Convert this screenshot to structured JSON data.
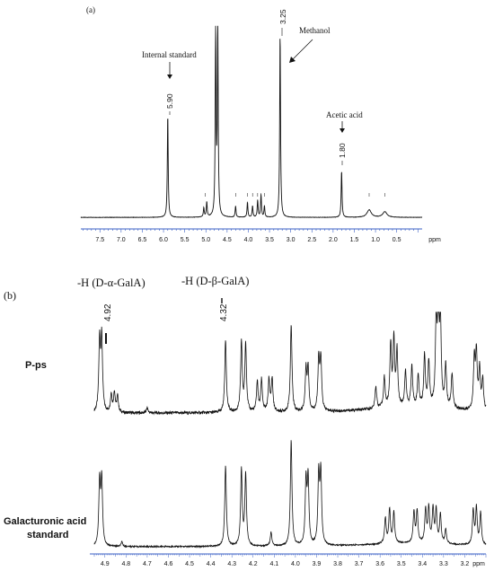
{
  "chart_data": [
    {
      "type": "line",
      "panel": "(a)",
      "xunit": "ppm",
      "xlim": [
        7.95,
        -0.1
      ],
      "xticks": [
        "7.5",
        "7.0",
        "6.5",
        "6.0",
        "5.5",
        "5.0",
        "4.5",
        "4.0",
        "3.5",
        "3.0",
        "2.5",
        "2.0",
        "1.5",
        "1.0",
        "0.5"
      ],
      "peaks": [
        {
          "x": 5.9,
          "y": 0.55
        },
        {
          "x": 5.05,
          "y": 0.05
        },
        {
          "x": 4.98,
          "y": 0.08
        },
        {
          "x": 4.77,
          "y": 1.0
        },
        {
          "x": 4.72,
          "y": 1.0
        },
        {
          "x": 4.3,
          "y": 0.06
        },
        {
          "x": 4.02,
          "y": 0.08
        },
        {
          "x": 3.9,
          "y": 0.06
        },
        {
          "x": 3.78,
          "y": 0.09
        },
        {
          "x": 3.7,
          "y": 0.12
        },
        {
          "x": 3.62,
          "y": 0.06
        },
        {
          "x": 3.25,
          "y": 0.98
        },
        {
          "x": 1.8,
          "y": 0.25
        },
        {
          "x": 1.15,
          "y": 0.04
        },
        {
          "x": 0.78,
          "y": 0.03
        }
      ],
      "peak_labels": [
        {
          "value": "5.90",
          "note": "Internal standard"
        },
        {
          "value": "3.25",
          "note": "Methanol"
        },
        {
          "value": "1.80",
          "note": "Acetic acid"
        }
      ]
    },
    {
      "type": "line",
      "panel": "(b)",
      "xunit": "ppm",
      "xlim": [
        4.95,
        3.1
      ],
      "xticks": [
        "4.9",
        "4.8",
        "4.7",
        "4.6",
        "4.5",
        "4.4",
        "4.3",
        "4.2",
        "4.1",
        "4.0",
        "3.9",
        "3.8",
        "3.7",
        "3.6",
        "3.5",
        "3.4",
        "3.3",
        "3.2"
      ],
      "header_labels": [
        {
          "value": "4.92",
          "note": "-H (D-α-GalA)"
        },
        {
          "value": "4.32",
          "note": "-H (D-β-GalA)"
        }
      ],
      "series": [
        {
          "name": "P-ps",
          "baseline": 0.1,
          "peaks": [
            {
              "x": 4.925,
              "y": 0.7
            },
            {
              "x": 4.915,
              "y": 0.72
            },
            {
              "x": 4.87,
              "y": 0.18
            },
            {
              "x": 4.855,
              "y": 0.2
            },
            {
              "x": 4.84,
              "y": 0.16
            },
            {
              "x": 4.7,
              "y": 0.05
            },
            {
              "x": 4.33,
              "y": 0.72
            },
            {
              "x": 4.255,
              "y": 0.7
            },
            {
              "x": 4.235,
              "y": 0.68
            },
            {
              "x": 4.18,
              "y": 0.3
            },
            {
              "x": 4.16,
              "y": 0.32
            },
            {
              "x": 4.125,
              "y": 0.32
            },
            {
              "x": 4.11,
              "y": 0.33
            },
            {
              "x": 4.02,
              "y": 0.87
            },
            {
              "x": 3.95,
              "y": 0.4
            },
            {
              "x": 3.94,
              "y": 0.42
            },
            {
              "x": 3.89,
              "y": 0.5
            },
            {
              "x": 3.88,
              "y": 0.52
            },
            {
              "x": 3.62,
              "y": 0.22
            },
            {
              "x": 3.58,
              "y": 0.3
            },
            {
              "x": 3.55,
              "y": 0.62
            },
            {
              "x": 3.535,
              "y": 0.66
            },
            {
              "x": 3.52,
              "y": 0.55
            },
            {
              "x": 3.48,
              "y": 0.35
            },
            {
              "x": 3.45,
              "y": 0.4
            },
            {
              "x": 3.42,
              "y": 0.32
            },
            {
              "x": 3.39,
              "y": 0.5
            },
            {
              "x": 3.37,
              "y": 0.45
            },
            {
              "x": 3.335,
              "y": 0.8
            },
            {
              "x": 3.325,
              "y": 0.92
            },
            {
              "x": 3.315,
              "y": 0.82
            },
            {
              "x": 3.29,
              "y": 0.42
            },
            {
              "x": 3.26,
              "y": 0.35
            },
            {
              "x": 3.155,
              "y": 0.5
            },
            {
              "x": 3.145,
              "y": 0.55
            },
            {
              "x": 3.13,
              "y": 0.4
            },
            {
              "x": 3.115,
              "y": 0.3
            }
          ]
        },
        {
          "name": "Galacturonic acid standard",
          "baseline": 0.05,
          "peaks": [
            {
              "x": 4.925,
              "y": 0.55
            },
            {
              "x": 4.915,
              "y": 0.57
            },
            {
              "x": 4.82,
              "y": 0.04
            },
            {
              "x": 4.33,
              "y": 0.7
            },
            {
              "x": 4.255,
              "y": 0.66
            },
            {
              "x": 4.235,
              "y": 0.62
            },
            {
              "x": 4.115,
              "y": 0.12
            },
            {
              "x": 4.02,
              "y": 0.92
            },
            {
              "x": 3.95,
              "y": 0.55
            },
            {
              "x": 3.94,
              "y": 0.57
            },
            {
              "x": 3.89,
              "y": 0.6
            },
            {
              "x": 3.88,
              "y": 0.62
            },
            {
              "x": 3.575,
              "y": 0.22
            },
            {
              "x": 3.555,
              "y": 0.3
            },
            {
              "x": 3.535,
              "y": 0.27
            },
            {
              "x": 3.44,
              "y": 0.27
            },
            {
              "x": 3.425,
              "y": 0.28
            },
            {
              "x": 3.385,
              "y": 0.29
            },
            {
              "x": 3.37,
              "y": 0.3
            },
            {
              "x": 3.35,
              "y": 0.3
            },
            {
              "x": 3.335,
              "y": 0.29
            },
            {
              "x": 3.315,
              "y": 0.25
            },
            {
              "x": 3.29,
              "y": 0.12
            },
            {
              "x": 3.16,
              "y": 0.3
            },
            {
              "x": 3.145,
              "y": 0.32
            },
            {
              "x": 3.125,
              "y": 0.28
            }
          ]
        }
      ]
    }
  ],
  "labels": {
    "panel_a": "(a)",
    "panel_b": "(b)",
    "internal_standard": "Internal standard",
    "methanol": "Methanol",
    "acetic_acid": "Acetic acid",
    "peak_590": "5.90",
    "peak_325": "3.25",
    "peak_180": "1.80",
    "alpha": "-H (D-α-GalA)",
    "beta": "-H (D-β-GalA)",
    "peak_492": "4.92",
    "peak_432": "4.32",
    "pps": "P-ps",
    "std_line1": "Galacturonic acid",
    "std_line2": "standard",
    "ppm": "ppm"
  },
  "colors": {
    "trace": "#111111",
    "axis": "#3a5fc4"
  }
}
